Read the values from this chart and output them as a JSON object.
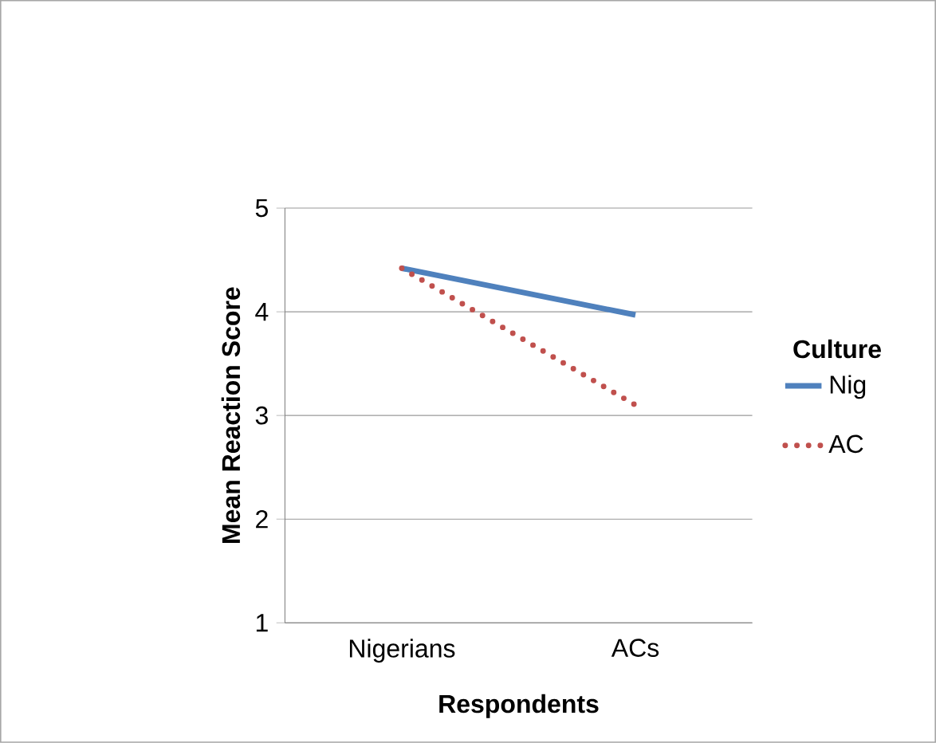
{
  "chart_data": {
    "type": "line",
    "xlabel": "Respondents",
    "ylabel": "Mean Reaction Score",
    "legend_title": "Culture",
    "categories": [
      "Nigerians",
      "ACs"
    ],
    "series": [
      {
        "name": "Nig",
        "color": "#4f81bd",
        "line_style": "solid",
        "values": [
          4.42,
          3.97
        ]
      },
      {
        "name": "AC",
        "color": "#c0504d",
        "line_style": "dotted",
        "values": [
          4.42,
          3.1
        ]
      }
    ],
    "ylim": [
      1,
      5
    ],
    "yticks": [
      1,
      2,
      3,
      4,
      5
    ],
    "grid": "y",
    "legend": "right",
    "marker": "none"
  }
}
